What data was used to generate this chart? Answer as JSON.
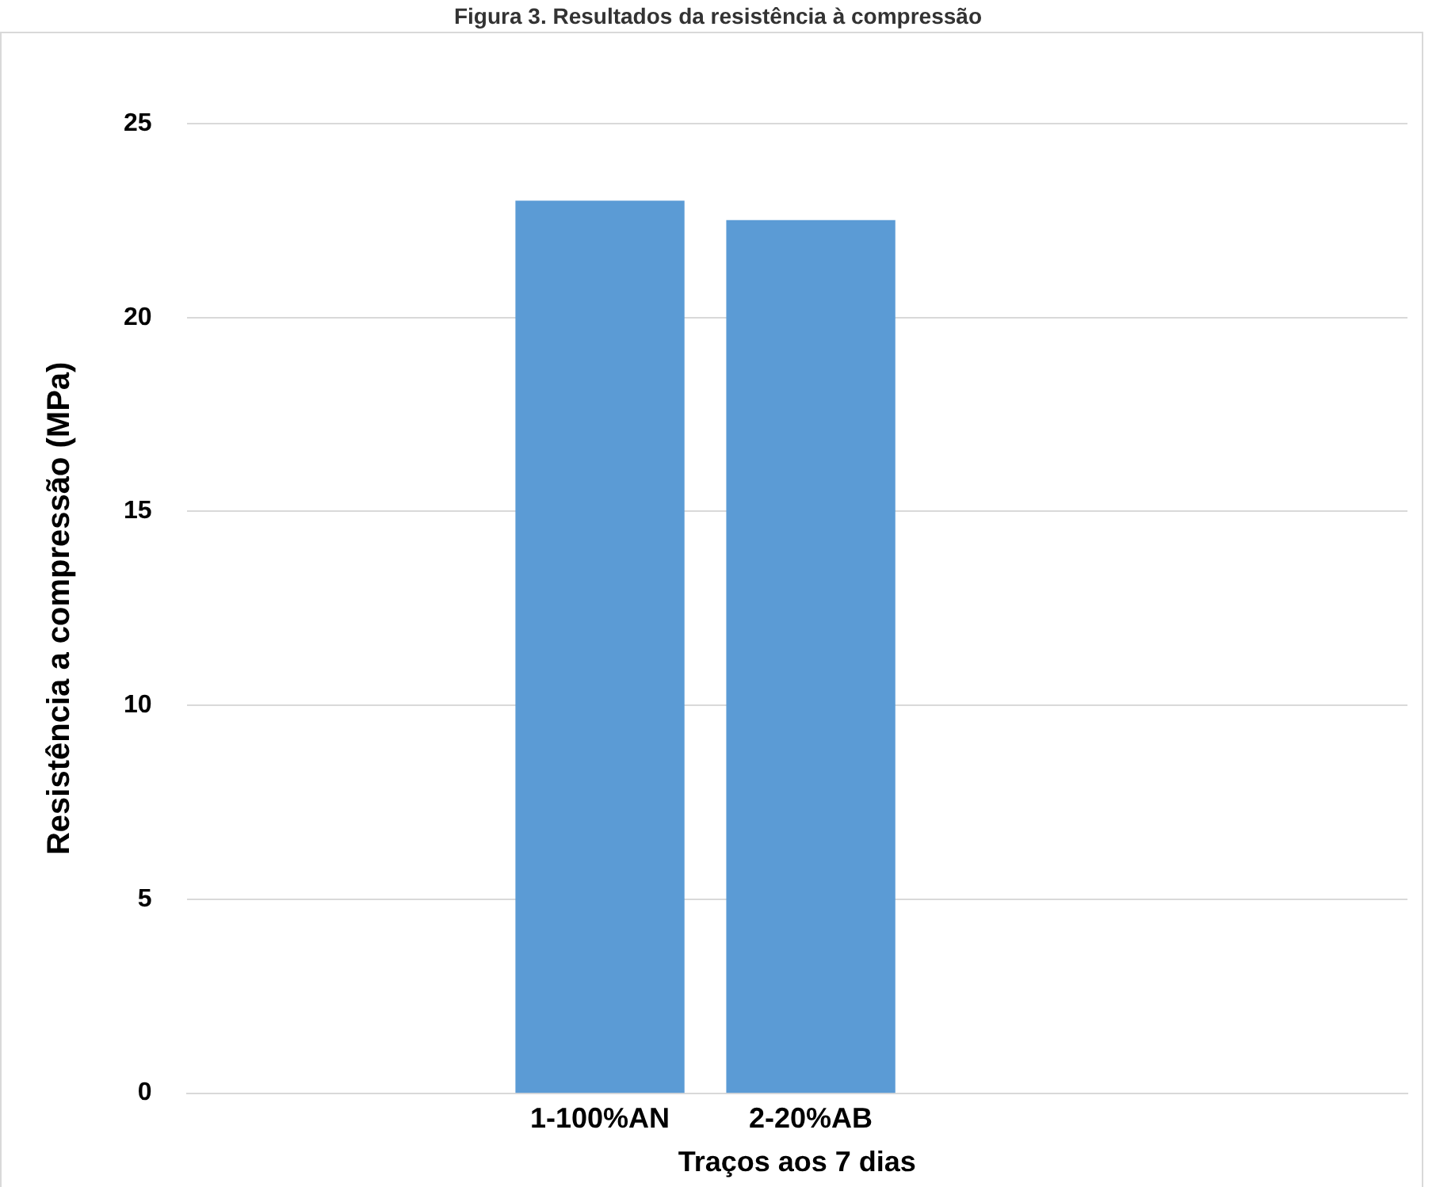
{
  "chart_data": {
    "type": "bar",
    "title": "Figura 3. Resultados da resistência à compressão",
    "xlabel": "Traços aos 7 dias",
    "ylabel": "Resistência a compressão (MPa)",
    "categories": [
      "1-100%AN",
      "2-20%AB"
    ],
    "values": [
      23.0,
      22.5
    ],
    "colors": [
      "#5b9bd5",
      "#5b9bd5"
    ],
    "ylim": [
      0,
      25
    ],
    "yticks": [
      0,
      5,
      10,
      15,
      20,
      25
    ],
    "grid": "y",
    "legend": false
  }
}
